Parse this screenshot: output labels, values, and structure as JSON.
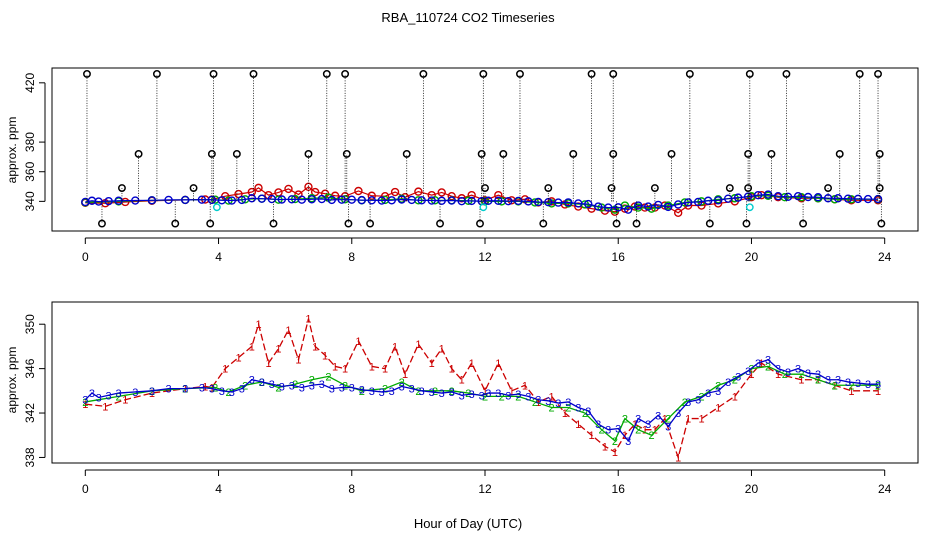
{
  "title": "RBA_110724  CO2 Timeseries",
  "xlabel": "Hour of Day (UTC)",
  "chart_data": [
    {
      "type": "scatter",
      "ylabel": "approx. ppm",
      "xlim": [
        -1,
        25
      ],
      "ylim": [
        320,
        430
      ],
      "xticks": [
        0,
        4,
        8,
        12,
        16,
        20,
        24
      ],
      "yticks": [
        340,
        360,
        380,
        420
      ],
      "series": [
        {
          "name": "black spikes",
          "color": "#000000",
          "marker": "circle",
          "spike_high_x": [
            0.05,
            2.15,
            3.85,
            5.05,
            7.25,
            7.8,
            10.15,
            11.95,
            13.05,
            15.2,
            15.85,
            18.15,
            19.95,
            21.05,
            23.25,
            23.8
          ],
          "spike_mid_x": [
            1.6,
            3.8,
            4.55,
            6.7,
            7.85,
            9.65,
            11.9,
            12.55,
            14.65,
            15.85,
            17.6,
            19.9,
            20.6,
            22.65,
            23.85
          ],
          "spike_low_x": [
            0.5,
            2.7,
            3.75,
            5.65,
            7.9,
            8.55,
            10.65,
            11.85,
            13.75,
            15.95,
            16.55,
            18.75,
            19.85,
            21.55,
            23.9
          ],
          "spike_small_x": [
            1.1,
            3.25,
            12.0,
            13.9,
            15.8,
            17.1,
            19.35,
            19.9,
            22.3,
            23.85
          ],
          "high_level": 426,
          "mid_level": 372,
          "low_level": 325,
          "small_level": 349
        },
        {
          "name": "cyan outliers",
          "color": "#00cccc",
          "marker": "circle",
          "x": [
            3.95,
            11.95,
            19.95
          ],
          "y": [
            336,
            336,
            336
          ]
        }
      ]
    },
    {
      "type": "line",
      "ylabel": "approx. ppm",
      "xlim": [
        -1,
        25
      ],
      "ylim": [
        337.5,
        352
      ],
      "xticks": [
        0,
        4,
        8,
        12,
        16,
        20,
        24
      ],
      "yticks": [
        338,
        342,
        346,
        350
      ],
      "series": [
        {
          "name": "1",
          "label": "1",
          "color": "#cc0000",
          "x": [
            0,
            0.6,
            1.2,
            2,
            3,
            3.6,
            3.8,
            4.2,
            4.6,
            5.0,
            5.2,
            5.5,
            5.8,
            6.1,
            6.4,
            6.7,
            6.9,
            7.2,
            7.5,
            7.8,
            8.2,
            8.6,
            9.0,
            9.3,
            9.6,
            10.0,
            10.4,
            10.7,
            11.0,
            11.3,
            11.6,
            12.0,
            12.4,
            12.8,
            13.2,
            13.6,
            14.0,
            14.4,
            14.8,
            15.2,
            15.6,
            15.9,
            16.2,
            16.5,
            16.8,
            17.1,
            17.4,
            17.8,
            18.1,
            18.5,
            19.0,
            19.5,
            20.0,
            20.3,
            20.8,
            21.5,
            22.0,
            22.5,
            23.0,
            23.8
          ],
          "y": [
            342.8,
            342.6,
            343.2,
            343.8,
            344.2,
            344.4,
            344.3,
            346.0,
            347.0,
            348.0,
            350.0,
            346.5,
            347.8,
            349.5,
            346.8,
            350.5,
            348.0,
            347.2,
            346.2,
            346.0,
            348.5,
            346.2,
            346.0,
            348.0,
            345.5,
            348.2,
            346.5,
            347.8,
            346.0,
            345.0,
            346.5,
            344.0,
            346.5,
            344.0,
            344.5,
            343.0,
            343.5,
            342.0,
            341.0,
            340.0,
            339.0,
            338.5,
            340.0,
            341.0,
            340.5,
            340.5,
            341.5,
            338.0,
            341.5,
            341.5,
            342.5,
            343.5,
            345.5,
            346.5,
            345.5,
            345.0,
            345.0,
            344.5,
            344.0,
            344.0
          ]
        },
        {
          "name": "2",
          "label": "2",
          "color": "#00aa00",
          "x": [
            0,
            1,
            2,
            3,
            3.9,
            4.3,
            4.8,
            5.3,
            5.8,
            6.3,
            6.8,
            7.3,
            7.8,
            8.3,
            9.0,
            9.5,
            10.0,
            10.5,
            11.0,
            11.5,
            12.0,
            12.5,
            13.0,
            13.5,
            14.0,
            14.5,
            15.0,
            15.5,
            15.9,
            16.2,
            16.6,
            17.0,
            17.5,
            18.0,
            18.5,
            19.0,
            19.5,
            20.0,
            20.5,
            21.0,
            21.5,
            22.0,
            22.5,
            23.0,
            23.8
          ],
          "y": [
            343.0,
            343.5,
            344.0,
            344.2,
            344.3,
            343.9,
            344.5,
            344.8,
            344.3,
            344.6,
            345.0,
            345.3,
            344.5,
            344.0,
            344.2,
            344.8,
            344.0,
            344.0,
            344.0,
            343.8,
            343.5,
            343.5,
            343.5,
            343.0,
            342.5,
            342.5,
            342.0,
            340.5,
            339.5,
            341.5,
            340.5,
            340.0,
            341.5,
            343.0,
            343.5,
            344.5,
            345.0,
            346.0,
            346.2,
            345.5,
            345.5,
            345.0,
            344.5,
            344.5,
            344.5
          ]
        },
        {
          "name": "3",
          "label": "3",
          "color": "#0000cc",
          "x": [
            0,
            0.2,
            0.4,
            0.7,
            1.0,
            1.5,
            2.0,
            2.5,
            3.0,
            3.5,
            3.8,
            4.1,
            4.4,
            4.7,
            5.0,
            5.3,
            5.6,
            5.9,
            6.2,
            6.5,
            6.8,
            7.1,
            7.4,
            7.7,
            8.0,
            8.3,
            8.6,
            8.9,
            9.2,
            9.5,
            9.8,
            10.1,
            10.4,
            10.7,
            11.0,
            11.3,
            11.6,
            11.9,
            12.1,
            12.4,
            12.7,
            13.0,
            13.3,
            13.6,
            13.9,
            14.2,
            14.5,
            14.8,
            15.1,
            15.4,
            15.7,
            16.0,
            16.3,
            16.6,
            16.9,
            17.2,
            17.5,
            17.8,
            18.1,
            18.4,
            18.7,
            19.0,
            19.3,
            19.6,
            19.9,
            20.2,
            20.5,
            20.8,
            21.1,
            21.4,
            21.7,
            22.0,
            22.3,
            22.6,
            22.9,
            23.2,
            23.5,
            23.8
          ],
          "y": [
            343.2,
            343.8,
            343.4,
            343.6,
            343.8,
            343.9,
            344.0,
            344.2,
            344.2,
            344.3,
            344.2,
            344.0,
            343.9,
            344.2,
            345.0,
            344.8,
            344.6,
            344.4,
            344.5,
            344.3,
            344.5,
            344.6,
            344.2,
            344.3,
            344.3,
            344.1,
            344.0,
            343.9,
            344.0,
            344.4,
            344.2,
            344.0,
            343.9,
            343.8,
            343.9,
            343.6,
            343.7,
            343.6,
            343.8,
            343.8,
            343.6,
            343.7,
            343.5,
            343.2,
            343.1,
            342.9,
            343.0,
            342.5,
            342.2,
            341.0,
            340.5,
            340.6,
            339.5,
            341.5,
            341.0,
            341.8,
            340.8,
            342.0,
            343.0,
            343.2,
            343.8,
            344.0,
            344.8,
            345.3,
            345.8,
            346.5,
            346.8,
            346.0,
            345.7,
            346.0,
            345.6,
            345.5,
            345.0,
            345.0,
            344.8,
            344.7,
            344.6,
            344.6
          ]
        }
      ]
    }
  ]
}
